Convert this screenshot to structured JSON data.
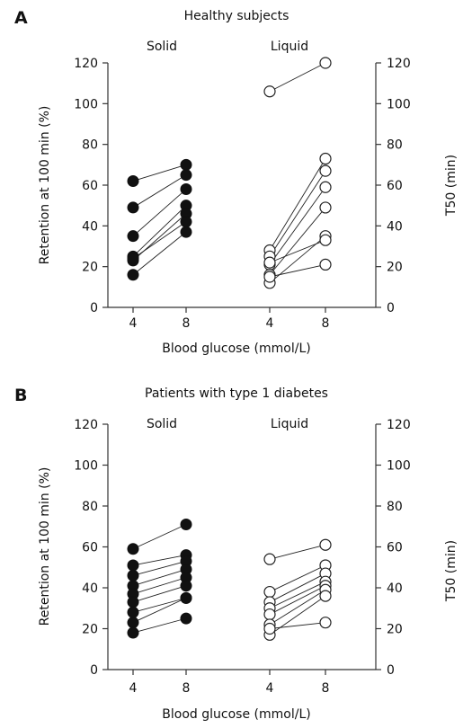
{
  "chart_data": [
    {
      "panel": "A",
      "type": "scatter",
      "title": "Healthy subjects",
      "xlabel": "Blood glucose (mmol/L)",
      "ylabel": "Retention at 100 min (%)",
      "ylabel_right": "T50 (min)",
      "x_ticks": [
        "4",
        "8",
        "4",
        "8"
      ],
      "y_ticks": [
        "0",
        "20",
        "40",
        "60",
        "80",
        "100",
        "120"
      ],
      "ylim": [
        0,
        120
      ],
      "ylim_right": [
        0,
        120
      ],
      "groups": [
        {
          "label": "Solid",
          "axis": "left",
          "marker": "filled circle",
          "x_values": [
            "4",
            "8"
          ],
          "pairs": [
            [
              62,
              70
            ],
            [
              49,
              65
            ],
            [
              35,
              58
            ],
            [
              25,
              50
            ],
            [
              23,
              46
            ],
            [
              16,
              37
            ],
            [
              24,
              42
            ]
          ]
        },
        {
          "label": "Liquid",
          "axis": "right",
          "marker": "open circle",
          "x_values": [
            "4",
            "8"
          ],
          "pairs": [
            [
              106,
              120
            ],
            [
              28,
              73
            ],
            [
              25,
              67
            ],
            [
              21,
              59
            ],
            [
              16,
              49
            ],
            [
              12,
              35
            ],
            [
              22,
              33
            ],
            [
              15,
              21
            ]
          ]
        }
      ]
    },
    {
      "panel": "B",
      "type": "scatter",
      "title": "Patients with type 1 diabetes",
      "xlabel": "Blood glucose (mmol/L)",
      "ylabel": "Retention at 100 min (%)",
      "ylabel_right": "T50 (min)",
      "x_ticks": [
        "4",
        "8",
        "4",
        "8"
      ],
      "y_ticks": [
        "0",
        "20",
        "40",
        "60",
        "80",
        "100",
        "120"
      ],
      "ylim": [
        0,
        120
      ],
      "ylim_right": [
        0,
        120
      ],
      "groups": [
        {
          "label": "Solid",
          "axis": "left",
          "marker": "filled circle",
          "x_values": [
            "4",
            "8"
          ],
          "pairs": [
            [
              59,
              71
            ],
            [
              51,
              56
            ],
            [
              46,
              53
            ],
            [
              41,
              49
            ],
            [
              37,
              45
            ],
            [
              33,
              41
            ],
            [
              28,
              35
            ],
            [
              23,
              35
            ],
            [
              18,
              25
            ]
          ]
        },
        {
          "label": "Liquid",
          "axis": "right",
          "marker": "open circle",
          "x_values": [
            "4",
            "8"
          ],
          "pairs": [
            [
              54,
              61
            ],
            [
              38,
              51
            ],
            [
              33,
              47
            ],
            [
              30,
              43
            ],
            [
              27,
              41
            ],
            [
              22,
              39
            ],
            [
              17,
              36
            ],
            [
              20,
              23
            ]
          ]
        }
      ]
    }
  ]
}
